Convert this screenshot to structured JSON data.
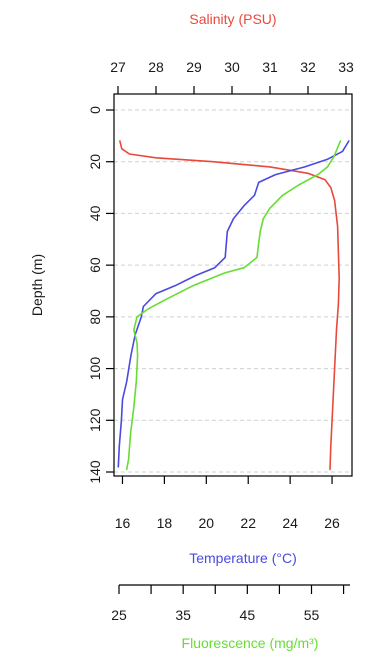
{
  "chart_data": {
    "type": "line",
    "title": "",
    "ylabel": "Depth (m)",
    "ylim": [
      0,
      140
    ],
    "y_inverted": true,
    "y_ticks": [
      0,
      20,
      40,
      60,
      80,
      100,
      120,
      140
    ],
    "grid": "horizontal dashed",
    "axes": {
      "salinity": {
        "label": "Salinity (PSU)",
        "position": "top",
        "color": "#e8493c",
        "range": [
          27,
          33
        ],
        "ticks": [
          27,
          28,
          29,
          30,
          31,
          32,
          33
        ]
      },
      "temperature": {
        "label": "Temperature (°C)",
        "position": "bottom",
        "color": "#4a4ae0",
        "range": [
          15.5,
          27
        ],
        "ticks": [
          16,
          18,
          20,
          22,
          24,
          26
        ]
      },
      "fluorescence": {
        "label": "Fluorescence (mg/m³)",
        "position": "bottom-secondary",
        "color": "#66dd33",
        "range": [
          25,
          61
        ],
        "ticks": [
          25,
          35,
          45,
          55
        ]
      }
    },
    "series": [
      {
        "axis": "salinity",
        "color": "#e8493c",
        "points": [
          [
            27.05,
            12
          ],
          [
            27.1,
            15
          ],
          [
            27.3,
            17
          ],
          [
            28.0,
            18.5
          ],
          [
            29.5,
            20
          ],
          [
            31.0,
            22
          ],
          [
            32.0,
            24.5
          ],
          [
            32.45,
            27
          ],
          [
            32.6,
            30
          ],
          [
            32.7,
            35
          ],
          [
            32.78,
            45
          ],
          [
            32.8,
            55
          ],
          [
            32.82,
            65
          ],
          [
            32.8,
            75
          ],
          [
            32.75,
            85
          ],
          [
            32.7,
            100
          ],
          [
            32.65,
            115
          ],
          [
            32.6,
            130
          ],
          [
            32.58,
            139
          ]
        ]
      },
      {
        "axis": "temperature",
        "color": "#4a4ae0",
        "points": [
          [
            26.8,
            12
          ],
          [
            26.5,
            16
          ],
          [
            25.8,
            19
          ],
          [
            24.7,
            22
          ],
          [
            23.3,
            25
          ],
          [
            22.5,
            28
          ],
          [
            22.3,
            33
          ],
          [
            21.8,
            37
          ],
          [
            21.3,
            42
          ],
          [
            21.0,
            47
          ],
          [
            20.9,
            57
          ],
          [
            20.4,
            61
          ],
          [
            19.5,
            64
          ],
          [
            18.5,
            68
          ],
          [
            17.6,
            71
          ],
          [
            17.0,
            76
          ],
          [
            16.9,
            80
          ],
          [
            16.6,
            87
          ],
          [
            16.4,
            95
          ],
          [
            16.2,
            105
          ],
          [
            16.0,
            112
          ],
          [
            15.95,
            120
          ],
          [
            15.85,
            130
          ],
          [
            15.8,
            138
          ]
        ]
      },
      {
        "axis": "fluorescence",
        "color": "#66dd33",
        "points": [
          [
            59.5,
            12
          ],
          [
            58.5,
            18
          ],
          [
            57.5,
            22
          ],
          [
            56.0,
            25
          ],
          [
            53.0,
            29
          ],
          [
            50.5,
            33
          ],
          [
            48.5,
            38
          ],
          [
            47.5,
            42
          ],
          [
            47.0,
            47
          ],
          [
            46.7,
            53
          ],
          [
            46.5,
            57
          ],
          [
            44.5,
            61
          ],
          [
            41.5,
            63
          ],
          [
            36.5,
            68
          ],
          [
            32.5,
            73
          ],
          [
            29.5,
            77
          ],
          [
            27.8,
            80
          ],
          [
            27.3,
            85
          ],
          [
            27.8,
            90
          ],
          [
            27.9,
            95
          ],
          [
            27.7,
            105
          ],
          [
            27.3,
            115
          ],
          [
            26.8,
            125
          ],
          [
            26.5,
            135
          ],
          [
            26.2,
            139
          ]
        ]
      }
    ]
  }
}
